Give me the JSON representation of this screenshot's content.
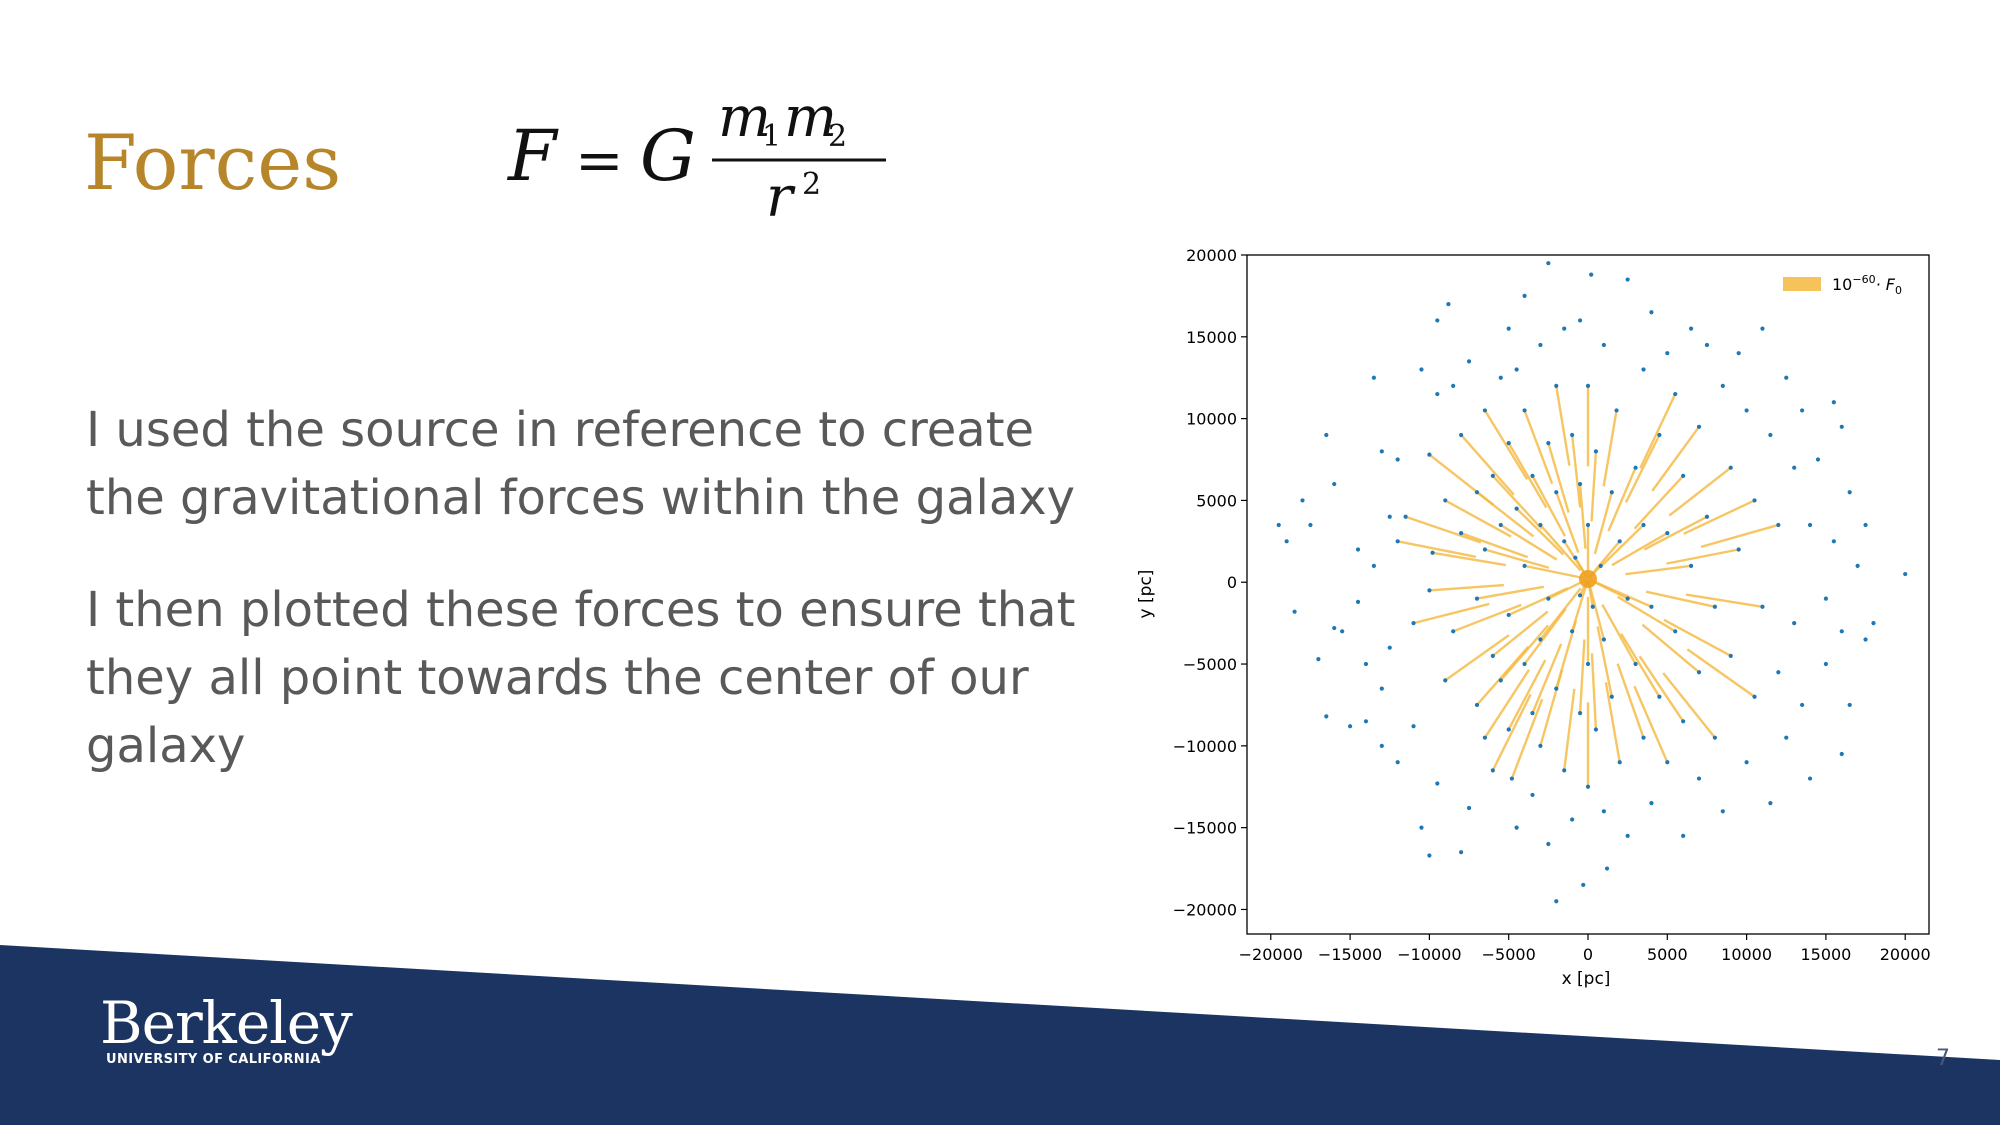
{
  "slide": {
    "title": "Forces",
    "formula": {
      "lhs": "F",
      "eq": "=",
      "G": "G",
      "m1": "m",
      "sub1": "1",
      "m2": "m",
      "sub2": "2",
      "r": "r",
      "exp": "2"
    },
    "bullets": [
      "I used the source in reference to create the gravitational forces within the galaxy",
      "I then plotted these forces to ensure that they all point towards the center of our galaxy"
    ],
    "logo": {
      "word": "Berkeley",
      "sub": "UNIVERSITY OF CALIFORNIA"
    },
    "page_number": "7",
    "colors": {
      "title": "#b8862a",
      "text": "#595959",
      "footer": "#1b3461",
      "point": "#1f77b4",
      "force": "#f5b83d"
    }
  },
  "chart_data": {
    "type": "scatter",
    "xlabel": "x [pc]",
    "ylabel": "y [pc]",
    "xlim": [
      -21500,
      21500
    ],
    "ylim": [
      -21500,
      20000
    ],
    "xticks": [
      -20000,
      -15000,
      -10000,
      -5000,
      0,
      5000,
      10000,
      15000,
      20000
    ],
    "yticks": [
      -20000,
      -15000,
      -10000,
      -5000,
      0,
      5000,
      10000,
      15000,
      20000
    ],
    "xtick_labels": [
      "−20000",
      "−15000",
      "−10000",
      "−5000",
      "0",
      "5000",
      "10000",
      "15000",
      "20000"
    ],
    "ytick_labels": [
      "−20000",
      "−15000",
      "−10000",
      "−5000",
      "0",
      "5000",
      "10000",
      "15000",
      "20000"
    ],
    "legend": {
      "label_base": "10",
      "label_exp": "−60",
      "label_rest": "· F",
      "label_sub": "0",
      "placement": "top-right"
    },
    "grid": false,
    "points": [
      [
        -19500,
        3500
      ],
      [
        -19000,
        2500
      ],
      [
        -18500,
        -1800
      ],
      [
        -18000,
        5000
      ],
      [
        -17500,
        3500
      ],
      [
        -17000,
        -4700
      ],
      [
        -16500,
        9000
      ],
      [
        -16500,
        -8200
      ],
      [
        -16000,
        6000
      ],
      [
        -16000,
        -2800
      ],
      [
        -15500,
        -3000
      ],
      [
        -15000,
        -8800
      ],
      [
        -14500,
        2000
      ],
      [
        -14500,
        -1200
      ],
      [
        -14000,
        -8500
      ],
      [
        -14000,
        -5000
      ],
      [
        -13500,
        12500
      ],
      [
        -13500,
        1000
      ],
      [
        -13000,
        8000
      ],
      [
        -13000,
        -6500
      ],
      [
        -13000,
        -10000
      ],
      [
        -12500,
        4000
      ],
      [
        -12500,
        -4000
      ],
      [
        -12000,
        2500
      ],
      [
        -12000,
        7500
      ],
      [
        -12000,
        -11000
      ],
      [
        -11500,
        4000
      ],
      [
        -11000,
        -2500
      ],
      [
        -11000,
        -8800
      ],
      [
        -10500,
        13000
      ],
      [
        -10500,
        -15000
      ],
      [
        -10000,
        7800
      ],
      [
        -10000,
        -500
      ],
      [
        -10000,
        -16700
      ],
      [
        -9800,
        1800
      ],
      [
        -9500,
        16000
      ],
      [
        -9500,
        11500
      ],
      [
        -9500,
        -12300
      ],
      [
        -9000,
        5000
      ],
      [
        -9000,
        -6000
      ],
      [
        -8800,
        17000
      ],
      [
        -8500,
        12000
      ],
      [
        -8500,
        -3000
      ],
      [
        -8000,
        9000
      ],
      [
        -8000,
        3000
      ],
      [
        -8000,
        -16500
      ],
      [
        -7500,
        13500
      ],
      [
        -7500,
        -13800
      ],
      [
        -7000,
        5500
      ],
      [
        -7000,
        -1000
      ],
      [
        -7000,
        -7500
      ],
      [
        -6500,
        10500
      ],
      [
        -6500,
        2000
      ],
      [
        -6500,
        -9500
      ],
      [
        -6000,
        6500
      ],
      [
        -6000,
        -4500
      ],
      [
        -6000,
        -11500
      ],
      [
        -5500,
        12500
      ],
      [
        -5500,
        3500
      ],
      [
        -5500,
        -6000
      ],
      [
        -5000,
        15500
      ],
      [
        -5000,
        8500
      ],
      [
        -5000,
        -2000
      ],
      [
        -5000,
        -9000
      ],
      [
        -4800,
        -12000
      ],
      [
        -4500,
        13000
      ],
      [
        -4500,
        4500
      ],
      [
        -4500,
        -15000
      ],
      [
        -4000,
        17500
      ],
      [
        -4000,
        10500
      ],
      [
        -4000,
        1000
      ],
      [
        -4000,
        -5000
      ],
      [
        -3500,
        6500
      ],
      [
        -3500,
        -8000
      ],
      [
        -3500,
        -13000
      ],
      [
        -3000,
        14500
      ],
      [
        -3000,
        3500
      ],
      [
        -3000,
        -3500
      ],
      [
        -3000,
        -10000
      ],
      [
        -2500,
        19500
      ],
      [
        -2500,
        8500
      ],
      [
        -2500,
        -1000
      ],
      [
        -2500,
        -16000
      ],
      [
        -2000,
        12000
      ],
      [
        -2000,
        5500
      ],
      [
        -2000,
        -6500
      ],
      [
        -2000,
        -19500
      ],
      [
        -1500,
        15500
      ],
      [
        -1500,
        2500
      ],
      [
        -1500,
        -11500
      ],
      [
        -1000,
        9000
      ],
      [
        -1000,
        -3000
      ],
      [
        -1000,
        -14500
      ],
      [
        -800,
        1500
      ],
      [
        -500,
        16000
      ],
      [
        -500,
        6000
      ],
      [
        -500,
        -800
      ],
      [
        -500,
        -8000
      ],
      [
        -300,
        -18500
      ],
      [
        0,
        12000
      ],
      [
        0,
        3500
      ],
      [
        0,
        -5000
      ],
      [
        0,
        -12500
      ],
      [
        200,
        18800
      ],
      [
        300,
        -1500
      ],
      [
        500,
        8000
      ],
      [
        500,
        -9000
      ],
      [
        800,
        1000
      ],
      [
        1000,
        14500
      ],
      [
        1000,
        -3500
      ],
      [
        1000,
        -14000
      ],
      [
        1200,
        -17500
      ],
      [
        1500,
        5500
      ],
      [
        1500,
        -7000
      ],
      [
        1800,
        10500
      ],
      [
        2000,
        2500
      ],
      [
        2000,
        -11000
      ],
      [
        2500,
        18500
      ],
      [
        2500,
        -1000
      ],
      [
        2500,
        -15500
      ],
      [
        3000,
        7000
      ],
      [
        3000,
        -5000
      ],
      [
        3500,
        13000
      ],
      [
        3500,
        3500
      ],
      [
        3500,
        -9500
      ],
      [
        4000,
        16500
      ],
      [
        4000,
        -1500
      ],
      [
        4000,
        -13500
      ],
      [
        4500,
        9000
      ],
      [
        4500,
        -7000
      ],
      [
        5000,
        14000
      ],
      [
        5000,
        3000
      ],
      [
        5000,
        -11000
      ],
      [
        5500,
        11500
      ],
      [
        5500,
        -3000
      ],
      [
        6000,
        6500
      ],
      [
        6000,
        -8500
      ],
      [
        6000,
        -15500
      ],
      [
        6500,
        15500
      ],
      [
        6500,
        1000
      ],
      [
        7000,
        9500
      ],
      [
        7000,
        -5500
      ],
      [
        7000,
        -12000
      ],
      [
        7500,
        14500
      ],
      [
        7500,
        4000
      ],
      [
        8000,
        -1500
      ],
      [
        8000,
        -9500
      ],
      [
        8500,
        12000
      ],
      [
        8500,
        -14000
      ],
      [
        9000,
        7000
      ],
      [
        9000,
        -4500
      ],
      [
        9500,
        14000
      ],
      [
        9500,
        2000
      ],
      [
        10000,
        10500
      ],
      [
        10000,
        -11000
      ],
      [
        10500,
        5000
      ],
      [
        10500,
        -7000
      ],
      [
        11000,
        15500
      ],
      [
        11000,
        -1500
      ],
      [
        11500,
        9000
      ],
      [
        11500,
        -13500
      ],
      [
        12000,
        3500
      ],
      [
        12000,
        -5500
      ],
      [
        12500,
        12500
      ],
      [
        12500,
        -9500
      ],
      [
        13000,
        7000
      ],
      [
        13000,
        -2500
      ],
      [
        13500,
        10500
      ],
      [
        13500,
        -7500
      ],
      [
        14000,
        3500
      ],
      [
        14000,
        -12000
      ],
      [
        14500,
        7500
      ],
      [
        15000,
        -1000
      ],
      [
        15000,
        -5000
      ],
      [
        15500,
        11000
      ],
      [
        15500,
        2500
      ],
      [
        16000,
        9500
      ],
      [
        16000,
        -3000
      ],
      [
        16000,
        -10500
      ],
      [
        16500,
        5500
      ],
      [
        16500,
        -7500
      ],
      [
        17000,
        1000
      ],
      [
        17500,
        -3500
      ],
      [
        17500,
        3500
      ],
      [
        18000,
        -2500
      ],
      [
        20000,
        500
      ]
    ],
    "center_point": [
      0,
      200
    ]
  }
}
